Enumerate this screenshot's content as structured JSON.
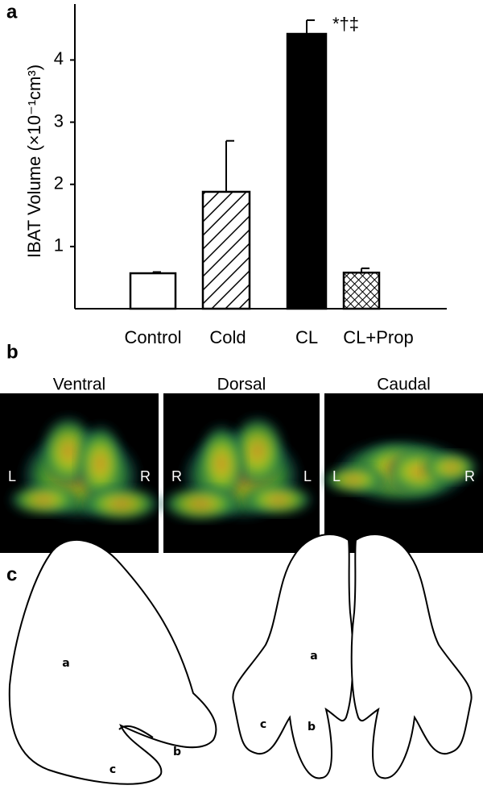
{
  "chart_data": {
    "type": "bar",
    "y_label": "IBAT Volume (×10⁻¹cm³)",
    "categories": [
      "Control",
      "Cold",
      "CL",
      "CL+Prop"
    ],
    "values": [
      0.57,
      1.88,
      4.42,
      0.58
    ],
    "errors": [
      0.02,
      0.82,
      0.22,
      0.07
    ],
    "fills": [
      "white",
      "hatch",
      "black",
      "crosshatch"
    ],
    "annotation": "*†‡",
    "ylim": [
      0,
      4.9
    ],
    "yticks": [
      1,
      2,
      3,
      4
    ],
    "grid": false
  },
  "panel_labels": [
    "a",
    "b",
    "c"
  ],
  "images": [
    {
      "title": "Ventral",
      "left": "L",
      "right": "R"
    },
    {
      "title": "Dorsal",
      "left": "R",
      "right": "L"
    },
    {
      "title": "Caudal",
      "left": "L",
      "right": "R"
    }
  ],
  "diagrams": [
    {
      "labels": [
        "a",
        "b",
        "c"
      ]
    },
    {
      "labels": [
        "a",
        "c",
        "b"
      ]
    }
  ]
}
